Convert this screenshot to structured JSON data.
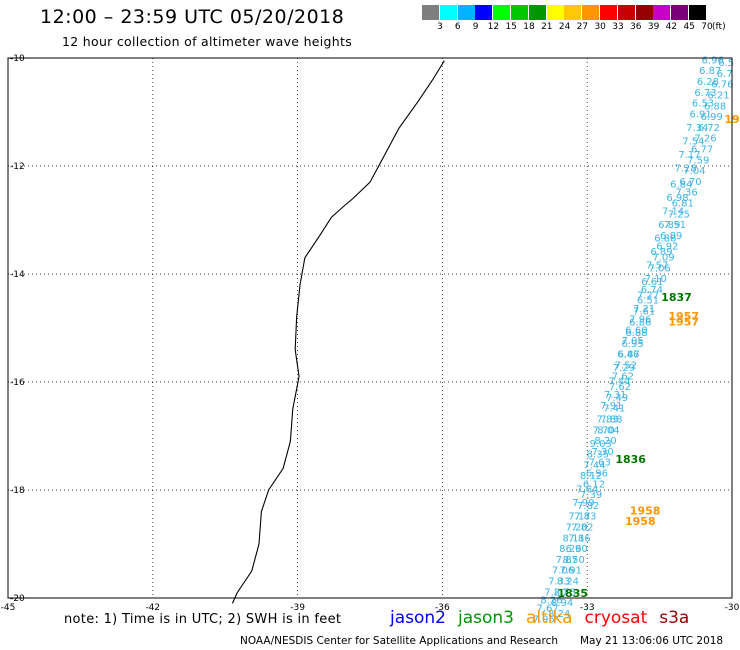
{
  "header": {
    "title": "12:00 – 23:59 UTC 05/20/2018",
    "subtitle": "12 hour collection of altimeter wave heights"
  },
  "color_legend": {
    "unit": "(ft)",
    "bins": [
      {
        "label": "3",
        "color": "#7f7f7f"
      },
      {
        "label": "6",
        "color": "#00ffff"
      },
      {
        "label": "9",
        "color": "#00b4ff"
      },
      {
        "label": "12",
        "color": "#0000ff"
      },
      {
        "label": "15",
        "color": "#00ff00"
      },
      {
        "label": "18",
        "color": "#00c800"
      },
      {
        "label": "21",
        "color": "#009600"
      },
      {
        "label": "24",
        "color": "#ffff00"
      },
      {
        "label": "27",
        "color": "#ffc800"
      },
      {
        "label": "30",
        "color": "#ff9600"
      },
      {
        "label": "33",
        "color": "#ff0000"
      },
      {
        "label": "36",
        "color": "#c80000"
      },
      {
        "label": "39",
        "color": "#960000"
      },
      {
        "label": "42",
        "color": "#c800c8"
      },
      {
        "label": "45",
        "color": "#780078"
      },
      {
        "label": "70",
        "color": "#000000"
      }
    ]
  },
  "map": {
    "lon_range": [
      -45,
      -30
    ],
    "lat_range": [
      -20,
      -10
    ],
    "lon_ticks": [
      "-45",
      "-42",
      "-39",
      "-36",
      "-33",
      "-30"
    ],
    "lat_ticks": [
      "-10",
      "-12",
      "-14",
      "-16",
      "-18",
      "-20"
    ]
  },
  "tracks": {
    "wave_color": "#3cb4e6",
    "track_a": [
      {
        "lon": -30.4,
        "lat": -10.1,
        "swh": "6.96"
      },
      {
        "lon": -30.45,
        "lat": -10.3,
        "swh": "6.87"
      },
      {
        "lon": -30.5,
        "lat": -10.5,
        "swh": "6.28"
      },
      {
        "lon": -30.55,
        "lat": -10.7,
        "swh": "6.73"
      },
      {
        "lon": -30.6,
        "lat": -10.9,
        "swh": "6.53"
      },
      {
        "lon": -30.65,
        "lat": -11.1,
        "swh": "6.91"
      },
      {
        "lon": -30.72,
        "lat": -11.35,
        "swh": "7.34"
      },
      {
        "lon": -30.8,
        "lat": -11.6,
        "swh": "7.54"
      },
      {
        "lon": -30.88,
        "lat": -11.85,
        "swh": "7.17"
      },
      {
        "lon": -30.96,
        "lat": -12.1,
        "swh": "7.28"
      },
      {
        "lon": -31.05,
        "lat": -12.4,
        "swh": "6.84"
      },
      {
        "lon": -31.13,
        "lat": -12.65,
        "swh": "6.98"
      },
      {
        "lon": -31.22,
        "lat": -12.9,
        "swh": "7.14"
      },
      {
        "lon": -31.3,
        "lat": -13.15,
        "swh": "6.89"
      },
      {
        "lon": -31.38,
        "lat": -13.4,
        "swh": "6.88"
      },
      {
        "lon": -31.46,
        "lat": -13.65,
        "swh": "6.89"
      },
      {
        "lon": -31.55,
        "lat": -13.9,
        "swh": "7.57"
      },
      {
        "lon": -31.65,
        "lat": -14.2,
        "swh": "6.61"
      },
      {
        "lon": -31.74,
        "lat": -14.45,
        "swh": "7.27"
      },
      {
        "lon": -31.82,
        "lat": -14.7,
        "swh": "7.21"
      },
      {
        "lon": -31.9,
        "lat": -14.9,
        "swh": "7.96"
      },
      {
        "lon": -31.98,
        "lat": -15.1,
        "swh": "6.60"
      },
      {
        "lon": -32.06,
        "lat": -15.3,
        "swh": "7.05"
      },
      {
        "lon": -32.15,
        "lat": -15.55,
        "swh": "6.46"
      },
      {
        "lon": -32.24,
        "lat": -15.8,
        "swh": "7.29"
      },
      {
        "lon": -32.33,
        "lat": -16.05,
        "swh": "7.44"
      },
      {
        "lon": -32.42,
        "lat": -16.3,
        "swh": "7.31"
      },
      {
        "lon": -32.5,
        "lat": -16.5,
        "swh": "7.91"
      },
      {
        "lon": -32.58,
        "lat": -16.75,
        "swh": "7.83"
      },
      {
        "lon": -32.66,
        "lat": -16.95,
        "swh": "7.70"
      },
      {
        "lon": -32.72,
        "lat": -17.2,
        "swh": "9.03"
      },
      {
        "lon": -32.78,
        "lat": -17.4,
        "swh": "8.35"
      },
      {
        "lon": -32.85,
        "lat": -17.6,
        "swh": "7.44"
      },
      {
        "lon": -32.92,
        "lat": -17.8,
        "swh": "8.12"
      },
      {
        "lon": -33.0,
        "lat": -18.05,
        "swh": "7.64"
      },
      {
        "lon": -33.08,
        "lat": -18.3,
        "swh": "7.99"
      },
      {
        "lon": -33.16,
        "lat": -18.55,
        "swh": "7.17"
      },
      {
        "lon": -33.22,
        "lat": -18.75,
        "swh": "7.20"
      },
      {
        "lon": -33.28,
        "lat": -18.95,
        "swh": "8.11"
      },
      {
        "lon": -33.35,
        "lat": -19.15,
        "swh": "8.26"
      },
      {
        "lon": -33.42,
        "lat": -19.35,
        "swh": "7.87"
      },
      {
        "lon": -33.5,
        "lat": -19.55,
        "swh": "7.06"
      },
      {
        "lon": -33.58,
        "lat": -19.75,
        "swh": "7.33"
      },
      {
        "lon": -33.66,
        "lat": -19.95,
        "swh": "7.20"
      },
      {
        "lon": -33.74,
        "lat": -20.1,
        "swh": "8.26"
      },
      {
        "lon": -33.82,
        "lat": -20.25,
        "swh": "7.67"
      },
      {
        "lon": -33.9,
        "lat": -20.45,
        "swh": "7.95"
      }
    ],
    "track_b": [
      {
        "lon": -30.12,
        "lat": -10.15,
        "swh": "6.5"
      },
      {
        "lon": -30.15,
        "lat": -10.35,
        "swh": "6.7"
      },
      {
        "lon": -30.2,
        "lat": -10.55,
        "swh": "6.76"
      },
      {
        "lon": -30.28,
        "lat": -10.75,
        "swh": "6.21"
      },
      {
        "lon": -30.35,
        "lat": -10.95,
        "swh": "6.88"
      },
      {
        "lon": -30.42,
        "lat": -11.15,
        "swh": "6.99"
      },
      {
        "lon": -30.48,
        "lat": -11.35,
        "swh": "6.72"
      },
      {
        "lon": -30.55,
        "lat": -11.55,
        "swh": "7.26"
      },
      {
        "lon": -30.62,
        "lat": -11.75,
        "swh": "6.77"
      },
      {
        "lon": -30.7,
        "lat": -11.95,
        "swh": "7.59"
      },
      {
        "lon": -30.78,
        "lat": -12.15,
        "swh": "7.04"
      },
      {
        "lon": -30.86,
        "lat": -12.35,
        "swh": "6.70"
      },
      {
        "lon": -30.94,
        "lat": -12.55,
        "swh": "7.36"
      },
      {
        "lon": -31.02,
        "lat": -12.75,
        "swh": "6.81"
      },
      {
        "lon": -31.1,
        "lat": -12.95,
        "swh": "7.25"
      },
      {
        "lon": -31.18,
        "lat": -13.15,
        "swh": "7.51"
      },
      {
        "lon": -31.26,
        "lat": -13.35,
        "swh": "6.89"
      },
      {
        "lon": -31.34,
        "lat": -13.55,
        "swh": "6.92"
      },
      {
        "lon": -31.42,
        "lat": -13.75,
        "swh": "7.09"
      },
      {
        "lon": -31.5,
        "lat": -13.95,
        "swh": "7.06"
      },
      {
        "lon": -31.58,
        "lat": -14.15,
        "swh": "7.10"
      },
      {
        "lon": -31.66,
        "lat": -14.35,
        "swh": "6.74"
      },
      {
        "lon": -31.74,
        "lat": -14.55,
        "swh": "6.51"
      },
      {
        "lon": -31.82,
        "lat": -14.75,
        "swh": "7.61"
      },
      {
        "lon": -31.9,
        "lat": -14.95,
        "swh": "6.86"
      },
      {
        "lon": -31.98,
        "lat": -15.15,
        "swh": "6.88"
      },
      {
        "lon": -32.06,
        "lat": -15.35,
        "swh": "6.95"
      },
      {
        "lon": -32.14,
        "lat": -15.55,
        "swh": "6.87"
      },
      {
        "lon": -32.2,
        "lat": -15.75,
        "swh": "7.52"
      },
      {
        "lon": -32.26,
        "lat": -15.95,
        "swh": "7.62"
      },
      {
        "lon": -32.32,
        "lat": -16.15,
        "swh": "7.62"
      },
      {
        "lon": -32.38,
        "lat": -16.35,
        "swh": "7.49"
      },
      {
        "lon": -32.44,
        "lat": -16.55,
        "swh": "7.41"
      },
      {
        "lon": -32.5,
        "lat": -16.75,
        "swh": "7.88"
      },
      {
        "lon": -32.56,
        "lat": -16.95,
        "swh": "8.04"
      },
      {
        "lon": -32.62,
        "lat": -17.15,
        "swh": "8.20"
      },
      {
        "lon": -32.68,
        "lat": -17.35,
        "swh": "7.30"
      },
      {
        "lon": -32.74,
        "lat": -17.55,
        "swh": "7.63"
      },
      {
        "lon": -32.8,
        "lat": -17.75,
        "swh": "6.96"
      },
      {
        "lon": -32.86,
        "lat": -17.95,
        "swh": "6.12"
      },
      {
        "lon": -32.92,
        "lat": -18.15,
        "swh": "7.39"
      },
      {
        "lon": -32.98,
        "lat": -18.35,
        "swh": "7.82"
      },
      {
        "lon": -33.04,
        "lat": -18.55,
        "swh": "7.83"
      },
      {
        "lon": -33.1,
        "lat": -18.75,
        "swh": "7.82"
      },
      {
        "lon": -33.16,
        "lat": -18.95,
        "swh": "7.86"
      },
      {
        "lon": -33.22,
        "lat": -19.15,
        "swh": "6.90"
      },
      {
        "lon": -33.28,
        "lat": -19.35,
        "swh": "8.50"
      },
      {
        "lon": -33.34,
        "lat": -19.55,
        "swh": "7.91"
      },
      {
        "lon": -33.4,
        "lat": -19.75,
        "swh": "8.24"
      },
      {
        "lon": -33.46,
        "lat": -19.95,
        "swh": "8.73"
      },
      {
        "lon": -33.52,
        "lat": -20.15,
        "swh": "8.94"
      },
      {
        "lon": -33.58,
        "lat": -20.35,
        "swh": "8.24"
      }
    ]
  },
  "pass_times": [
    {
      "lon": -31.15,
      "lat": -14.5,
      "text": "1837",
      "color": "#007800"
    },
    {
      "lon": -31.0,
      "lat": -14.85,
      "text": "1957",
      "color": "#ff9600"
    },
    {
      "lon": -31.0,
      "lat": -14.95,
      "text": "1957",
      "color": "#ff9600"
    },
    {
      "lon": -32.1,
      "lat": -17.5,
      "text": "1836",
      "color": "#007800"
    },
    {
      "lon": -31.8,
      "lat": -18.45,
      "text": "1958",
      "color": "#ff9600"
    },
    {
      "lon": -31.9,
      "lat": -18.65,
      "text": "1958",
      "color": "#ff9600"
    },
    {
      "lon": -33.3,
      "lat": -19.98,
      "text": "1835",
      "color": "#007800"
    },
    {
      "lon": -30.0,
      "lat": -11.2,
      "text": "19",
      "color": "#ff9600"
    }
  ],
  "note": "note: 1) Time is in UTC; 2) SWH is in feet",
  "satellites": [
    {
      "name": "jason2",
      "color": "#0000ff"
    },
    {
      "name": "jason3",
      "color": "#009600"
    },
    {
      "name": "altika",
      "color": "#ff9600"
    },
    {
      "name": "cryosat",
      "color": "#ff0000"
    },
    {
      "name": "s3a",
      "color": "#960000"
    }
  ],
  "footer": {
    "credit": "NOAA/NESDIS Center for Satellite Applications and Research",
    "timestamp": "May 21 13:06:06 UTC 2018"
  }
}
